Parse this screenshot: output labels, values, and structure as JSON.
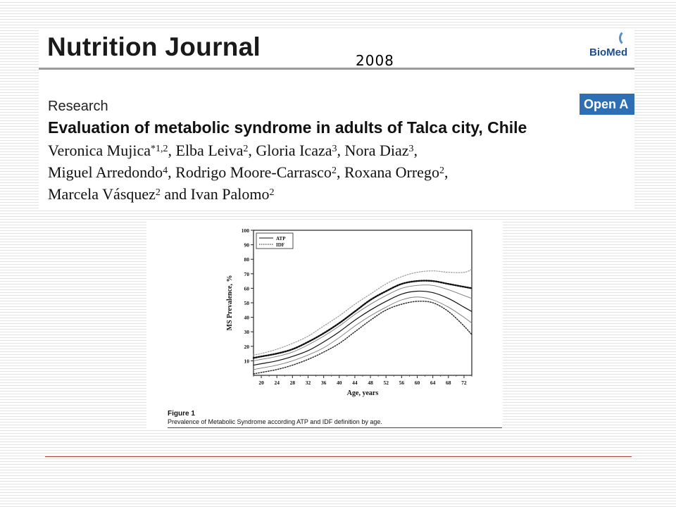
{
  "header": {
    "journal_title": "Nutrition Journal",
    "year": "2008",
    "publisher": "BioMed",
    "article_type": "Research",
    "open_access": "Open A",
    "article_title": "Evaluation of metabolic syndrome in adults of Talca city, Chile",
    "authors": [
      [
        {
          "name": "Veronica Mujica",
          "sup": "*1,2",
          "sep": ", "
        },
        {
          "name": "Elba Leiva",
          "sup": "2",
          "sep": ", "
        },
        {
          "name": "Gloria Icaza",
          "sup": "3",
          "sep": ", "
        },
        {
          "name": "Nora Diaz",
          "sup": "3",
          "sep": ","
        }
      ],
      [
        {
          "name": "Miguel Arredondo",
          "sup": "4",
          "sep": ", "
        },
        {
          "name": "Rodrigo Moore-Carrasco",
          "sup": "2",
          "sep": ", "
        },
        {
          "name": "Roxana Orrego",
          "sup": "2",
          "sep": ","
        }
      ],
      [
        {
          "name": "Marcela Vásquez",
          "sup": "2",
          "sep": " and "
        },
        {
          "name": "Ivan Palomo",
          "sup": "2",
          "sep": ""
        }
      ]
    ]
  },
  "figure": {
    "label": "Figure 1",
    "caption": "Prevalence of Metabolic Syndrome according ATP and IDF definition by age."
  },
  "chart_data": {
    "type": "line",
    "xlabel": "Age, years",
    "ylabel": "MS Prevalence, %",
    "xlim": [
      18,
      74
    ],
    "ylim": [
      0,
      100
    ],
    "xticks": [
      20,
      24,
      28,
      32,
      36,
      40,
      44,
      48,
      52,
      56,
      60,
      64,
      68,
      72
    ],
    "yticks": [
      10,
      20,
      30,
      40,
      50,
      60,
      70,
      80,
      90,
      100
    ],
    "legend_position": "top-left",
    "legend": [
      {
        "label": "ATP",
        "style": "solid"
      },
      {
        "label": "IDF",
        "style": "dotted"
      }
    ],
    "series": [
      {
        "name": "ATP",
        "role": "estimate",
        "style": "solid",
        "color": "#111111",
        "x": [
          18,
          20,
          24,
          28,
          32,
          36,
          40,
          44,
          48,
          52,
          56,
          60,
          64,
          68,
          72,
          74
        ],
        "y": [
          7,
          8,
          10,
          13,
          17,
          23,
          30,
          38,
          45,
          51,
          56,
          58,
          57,
          53,
          47,
          44
        ]
      },
      {
        "name": "ATP",
        "role": "ci-upper",
        "style": "light",
        "color": "#777777",
        "x": [
          18,
          20,
          24,
          28,
          32,
          36,
          40,
          44,
          48,
          52,
          56,
          60,
          64,
          68,
          72,
          74
        ],
        "y": [
          10,
          11,
          13,
          16,
          21,
          27,
          34,
          42,
          49,
          55,
          60,
          62,
          62,
          59,
          55,
          53
        ]
      },
      {
        "name": "ATP",
        "role": "ci-lower",
        "style": "light",
        "color": "#777777",
        "x": [
          18,
          20,
          24,
          28,
          32,
          36,
          40,
          44,
          48,
          52,
          56,
          60,
          64,
          68,
          72,
          74
        ],
        "y": [
          4,
          5,
          7,
          10,
          14,
          19,
          26,
          34,
          41,
          47,
          52,
          54,
          52,
          47,
          40,
          36
        ]
      },
      {
        "name": "IDF",
        "role": "estimate",
        "style": "dotted-bold",
        "color": "#111111",
        "x": [
          18,
          20,
          24,
          28,
          32,
          36,
          40,
          44,
          48,
          52,
          56,
          60,
          64,
          68,
          72,
          74
        ],
        "y": [
          12,
          13,
          15,
          18,
          23,
          29,
          36,
          44,
          52,
          58,
          63,
          65,
          65,
          63,
          61,
          60
        ]
      },
      {
        "name": "IDF",
        "role": "ci-upper",
        "style": "dotted-light",
        "color": "#999999",
        "x": [
          18,
          20,
          24,
          28,
          32,
          36,
          40,
          44,
          48,
          52,
          56,
          60,
          64,
          68,
          72,
          74
        ],
        "y": [
          14,
          15,
          18,
          22,
          27,
          34,
          41,
          49,
          56,
          63,
          68,
          71,
          72,
          71,
          71,
          73
        ]
      },
      {
        "name": "IDF",
        "role": "ci-lower",
        "style": "dotted-dark",
        "color": "#222222",
        "x": [
          18,
          20,
          24,
          28,
          32,
          36,
          40,
          44,
          48,
          52,
          56,
          60,
          64,
          68,
          72,
          74
        ],
        "y": [
          1,
          2,
          4,
          7,
          11,
          16,
          22,
          30,
          38,
          45,
          49,
          51,
          50,
          44,
          34,
          28
        ]
      }
    ]
  }
}
